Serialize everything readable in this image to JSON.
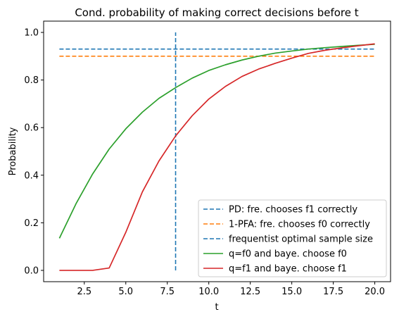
{
  "chart_data": {
    "type": "line",
    "title": "Cond. probability of making correct decisions before t",
    "xlabel": "t",
    "ylabel": "Probability",
    "xlim": [
      0.05,
      20.95
    ],
    "ylim": [
      -0.0475,
      1.0475
    ],
    "xticks": [
      2.5,
      5.0,
      7.5,
      10.0,
      12.5,
      15.0,
      17.5,
      20.0
    ],
    "xtick_labels": [
      "2.5",
      "5.0",
      "7.5",
      "10.0",
      "12.5",
      "15.0",
      "17.5",
      "20.0"
    ],
    "yticks": [
      0.0,
      0.2,
      0.4,
      0.6,
      0.8,
      1.0
    ],
    "ytick_labels": [
      "0.0",
      "0.2",
      "0.4",
      "0.6",
      "0.8",
      "1.0"
    ],
    "grid": false,
    "legend_position": "lower-right",
    "hlines": [
      {
        "name": "PD: fre. chooses f1 correctly",
        "y": 0.93,
        "x": [
          1,
          20
        ],
        "color": "#1f77b4",
        "style": "dashed"
      },
      {
        "name": "1-PFA: fre. chooses f0 correctly",
        "y": 0.9,
        "x": [
          1,
          20
        ],
        "color": "#ff7f0e",
        "style": "dashed"
      }
    ],
    "vlines": [
      {
        "name": "frequentist optimal sample size",
        "x": 8,
        "y": [
          0,
          1
        ],
        "color": "#1f77b4",
        "style": "dashed"
      }
    ],
    "series": [
      {
        "name": "q=f0 and baye. choose f0",
        "color": "#2ca02c",
        "x": [
          1,
          2,
          3,
          4,
          5,
          6,
          7,
          8,
          9,
          10,
          11,
          12,
          13,
          14,
          15,
          16,
          17,
          18,
          19,
          20
        ],
        "values": [
          0.135,
          0.28,
          0.405,
          0.51,
          0.595,
          0.665,
          0.723,
          0.768,
          0.808,
          0.84,
          0.864,
          0.884,
          0.9,
          0.913,
          0.922,
          0.93,
          0.936,
          0.941,
          0.946,
          0.95
        ]
      },
      {
        "name": "q=f1 and baye. choose f1",
        "color": "#d62728",
        "x": [
          1,
          2,
          3,
          4,
          5,
          6,
          7,
          8,
          9,
          10,
          11,
          12,
          13,
          14,
          15,
          16,
          17,
          18,
          19,
          20
        ],
        "values": [
          0.0,
          0.0,
          0.0,
          0.01,
          0.16,
          0.33,
          0.46,
          0.565,
          0.65,
          0.72,
          0.773,
          0.815,
          0.846,
          0.87,
          0.892,
          0.912,
          0.925,
          0.935,
          0.944,
          0.952
        ]
      }
    ],
    "legend": [
      "PD: fre. chooses f1 correctly",
      "1-PFA: fre. chooses f0 correctly",
      "frequentist optimal sample size",
      "q=f0 and baye. choose f0",
      "q=f1 and baye. choose f1"
    ]
  }
}
